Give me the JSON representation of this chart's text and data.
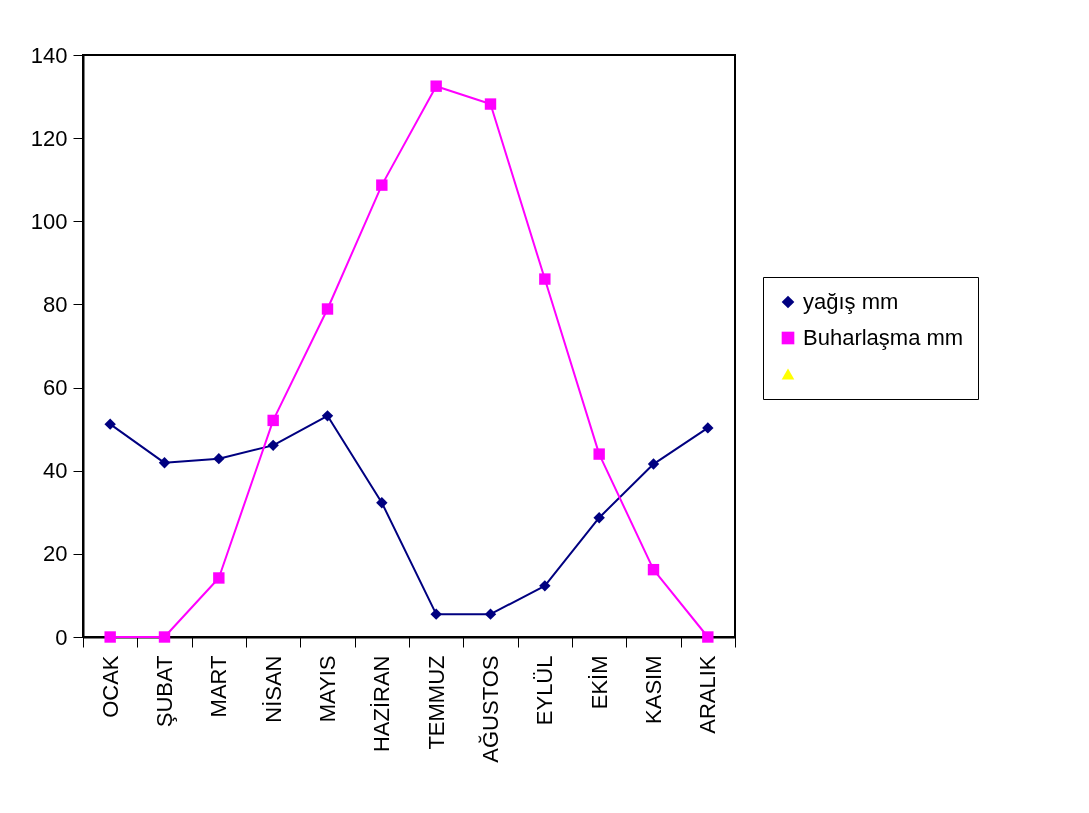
{
  "chart_data": {
    "type": "line",
    "categories": [
      "OCAK",
      "ŞUBAT",
      "MART",
      "NİSAN",
      "MAYIS",
      "HAZİRAN",
      "TEMMUZ",
      "AĞUSTOS",
      "EYLÜL",
      "EKİM",
      "KASIM",
      "ARALIK"
    ],
    "series": [
      {
        "name": "yağış mm",
        "color": "#000080",
        "marker": "diamond",
        "values": [
          51.2,
          41.9,
          42.9,
          46.1,
          53.2,
          32.3,
          5.5,
          5.5,
          12.3,
          28.7,
          41.6,
          50.3
        ]
      },
      {
        "name": "Buharlaşma mm",
        "color": "#ff00ff",
        "marker": "square",
        "values": [
          0,
          0,
          14.2,
          52.1,
          78.9,
          108.7,
          132.5,
          128.2,
          86.1,
          44.0,
          16.2,
          0
        ]
      },
      {
        "color": "#ffff00",
        "marker": "triangle",
        "values": [
          null,
          null,
          null,
          null,
          null,
          null,
          null,
          null,
          null,
          null,
          null,
          null
        ]
      }
    ],
    "ylim": [
      0,
      140
    ],
    "yticks": [
      0,
      20,
      40,
      60,
      80,
      100,
      120,
      140
    ],
    "grid": false,
    "legend": "right"
  }
}
